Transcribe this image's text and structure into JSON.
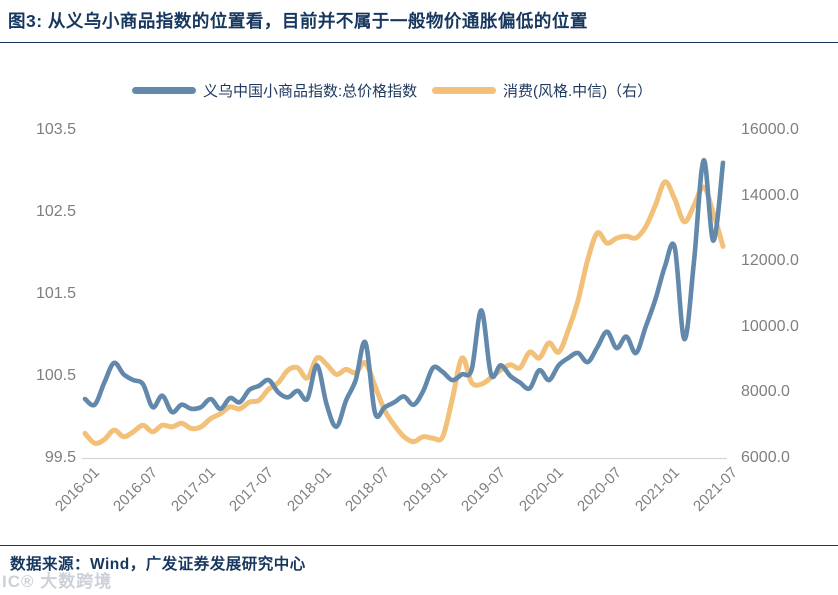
{
  "figure": {
    "title": "图3:  从义乌小商品指数的位置看，目前并不属于一般物价通胀偏低的位置",
    "source": "数据来源：Wind，广发证券发展研究中心",
    "watermark": "IC® 大数跨境"
  },
  "colors": {
    "navy": "#17375e",
    "yiwu_line": "#6289ac",
    "consumption_line": "#f2c078",
    "axis_text": "#7f7f7f",
    "axis_line": "#d6d6d6"
  },
  "legend": [
    {
      "label": "义乌中国小商品指数:总价格指数",
      "color": "#6289ac"
    },
    {
      "label": "消费(风格.中信)（右）",
      "color": "#f2c078"
    }
  ],
  "chart_data": {
    "type": "line",
    "x": [
      "2016-01",
      "2016-02",
      "2016-03",
      "2016-04",
      "2016-05",
      "2016-06",
      "2016-07",
      "2016-08",
      "2016-09",
      "2016-10",
      "2016-11",
      "2016-12",
      "2017-01",
      "2017-02",
      "2017-03",
      "2017-04",
      "2017-05",
      "2017-06",
      "2017-07",
      "2017-08",
      "2017-09",
      "2017-10",
      "2017-11",
      "2017-12",
      "2018-01",
      "2018-02",
      "2018-03",
      "2018-04",
      "2018-05",
      "2018-06",
      "2018-07",
      "2018-08",
      "2018-09",
      "2018-10",
      "2018-11",
      "2018-12",
      "2019-01",
      "2019-02",
      "2019-03",
      "2019-04",
      "2019-05",
      "2019-06",
      "2019-07",
      "2019-08",
      "2019-09",
      "2019-10",
      "2019-11",
      "2019-12",
      "2020-01",
      "2020-02",
      "2020-03",
      "2020-04",
      "2020-05",
      "2020-06",
      "2020-07",
      "2020-08",
      "2020-09",
      "2020-10",
      "2020-11",
      "2020-12",
      "2021-01",
      "2021-02",
      "2021-03",
      "2021-04",
      "2021-05",
      "2021-06",
      "2021-07"
    ],
    "x_ticks": [
      "2016-01",
      "2016-07",
      "2017-01",
      "2017-07",
      "2018-01",
      "2018-07",
      "2019-01",
      "2019-07",
      "2020-01",
      "2020-07",
      "2021-01",
      "2021-07"
    ],
    "left_axis": {
      "min": 99.5,
      "max": 103.5,
      "ticks": [
        103.5,
        102.5,
        101.5,
        100.5,
        99.5
      ]
    },
    "right_axis": {
      "min": 6000,
      "max": 16000,
      "ticks": [
        16000.0,
        14000.0,
        12000.0,
        10000.0,
        8000.0,
        6000.0
      ]
    },
    "grid": false,
    "legend_position": "top",
    "series": [
      {
        "name": "义乌中国小商品指数:总价格指数",
        "axis": "left",
        "color": "#6289ac",
        "values": [
          100.22,
          100.15,
          100.42,
          100.66,
          100.52,
          100.45,
          100.4,
          100.12,
          100.26,
          100.06,
          100.15,
          100.1,
          100.12,
          100.22,
          100.1,
          100.23,
          100.18,
          100.33,
          100.38,
          100.45,
          100.3,
          100.24,
          100.32,
          100.22,
          100.63,
          100.15,
          99.88,
          100.2,
          100.45,
          100.91,
          100.05,
          100.12,
          100.18,
          100.25,
          100.15,
          100.32,
          100.6,
          100.55,
          100.45,
          100.52,
          100.58,
          101.3,
          100.52,
          100.63,
          100.5,
          100.42,
          100.35,
          100.57,
          100.45,
          100.63,
          100.72,
          100.78,
          100.67,
          100.85,
          101.04,
          100.84,
          100.98,
          100.78,
          101.1,
          101.43,
          101.84,
          102.07,
          100.95,
          101.9,
          103.13,
          102.15,
          103.1
        ]
      },
      {
        "name": "消费(风格.中信)（右）",
        "axis": "right",
        "color": "#f2c078",
        "values": [
          6750,
          6450,
          6560,
          6850,
          6650,
          6800,
          7000,
          6800,
          7000,
          6950,
          7060,
          6900,
          6950,
          7200,
          7350,
          7560,
          7500,
          7700,
          7760,
          8100,
          8300,
          8680,
          8750,
          8440,
          9050,
          8850,
          8550,
          8700,
          8600,
          8900,
          8200,
          7450,
          7000,
          6650,
          6500,
          6650,
          6600,
          6650,
          7800,
          9050,
          8300,
          8250,
          8450,
          8680,
          8840,
          8750,
          9230,
          9050,
          9510,
          9230,
          9900,
          10800,
          12040,
          12860,
          12550,
          12700,
          12760,
          12710,
          13050,
          13700,
          14420,
          13900,
          13200,
          13700,
          14260,
          13470,
          12450
        ]
      }
    ]
  }
}
